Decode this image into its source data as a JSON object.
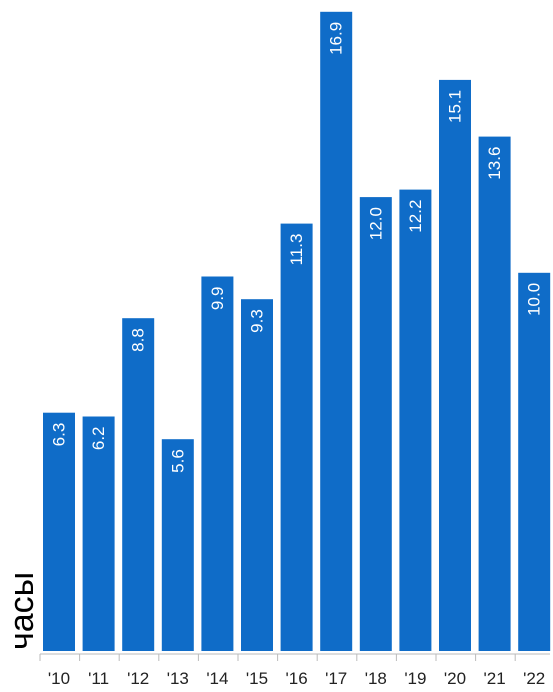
{
  "chart_data": {
    "type": "bar",
    "categories": [
      "'10",
      "'11",
      "'12",
      "'13",
      "'14",
      "'15",
      "'16",
      "'17",
      "'18",
      "'19",
      "'20",
      "'21",
      "'22"
    ],
    "values": [
      6.3,
      6.2,
      8.8,
      5.6,
      9.9,
      9.3,
      11.3,
      16.9,
      12.0,
      12.2,
      15.1,
      13.6,
      10.0
    ],
    "value_labels": [
      "6.3",
      "6.2",
      "8.8",
      "5.6",
      "9.9",
      "9.3",
      "11.3",
      "16.9",
      "12.0",
      "12.2",
      "15.1",
      "13.6",
      "10.0"
    ],
    "ylabel": "часы",
    "ylim": [
      0,
      17
    ],
    "grid": false,
    "colors": {
      "bar": "#0f6cc8",
      "label": "#ffffff",
      "axis": "#bbbbbb"
    }
  }
}
